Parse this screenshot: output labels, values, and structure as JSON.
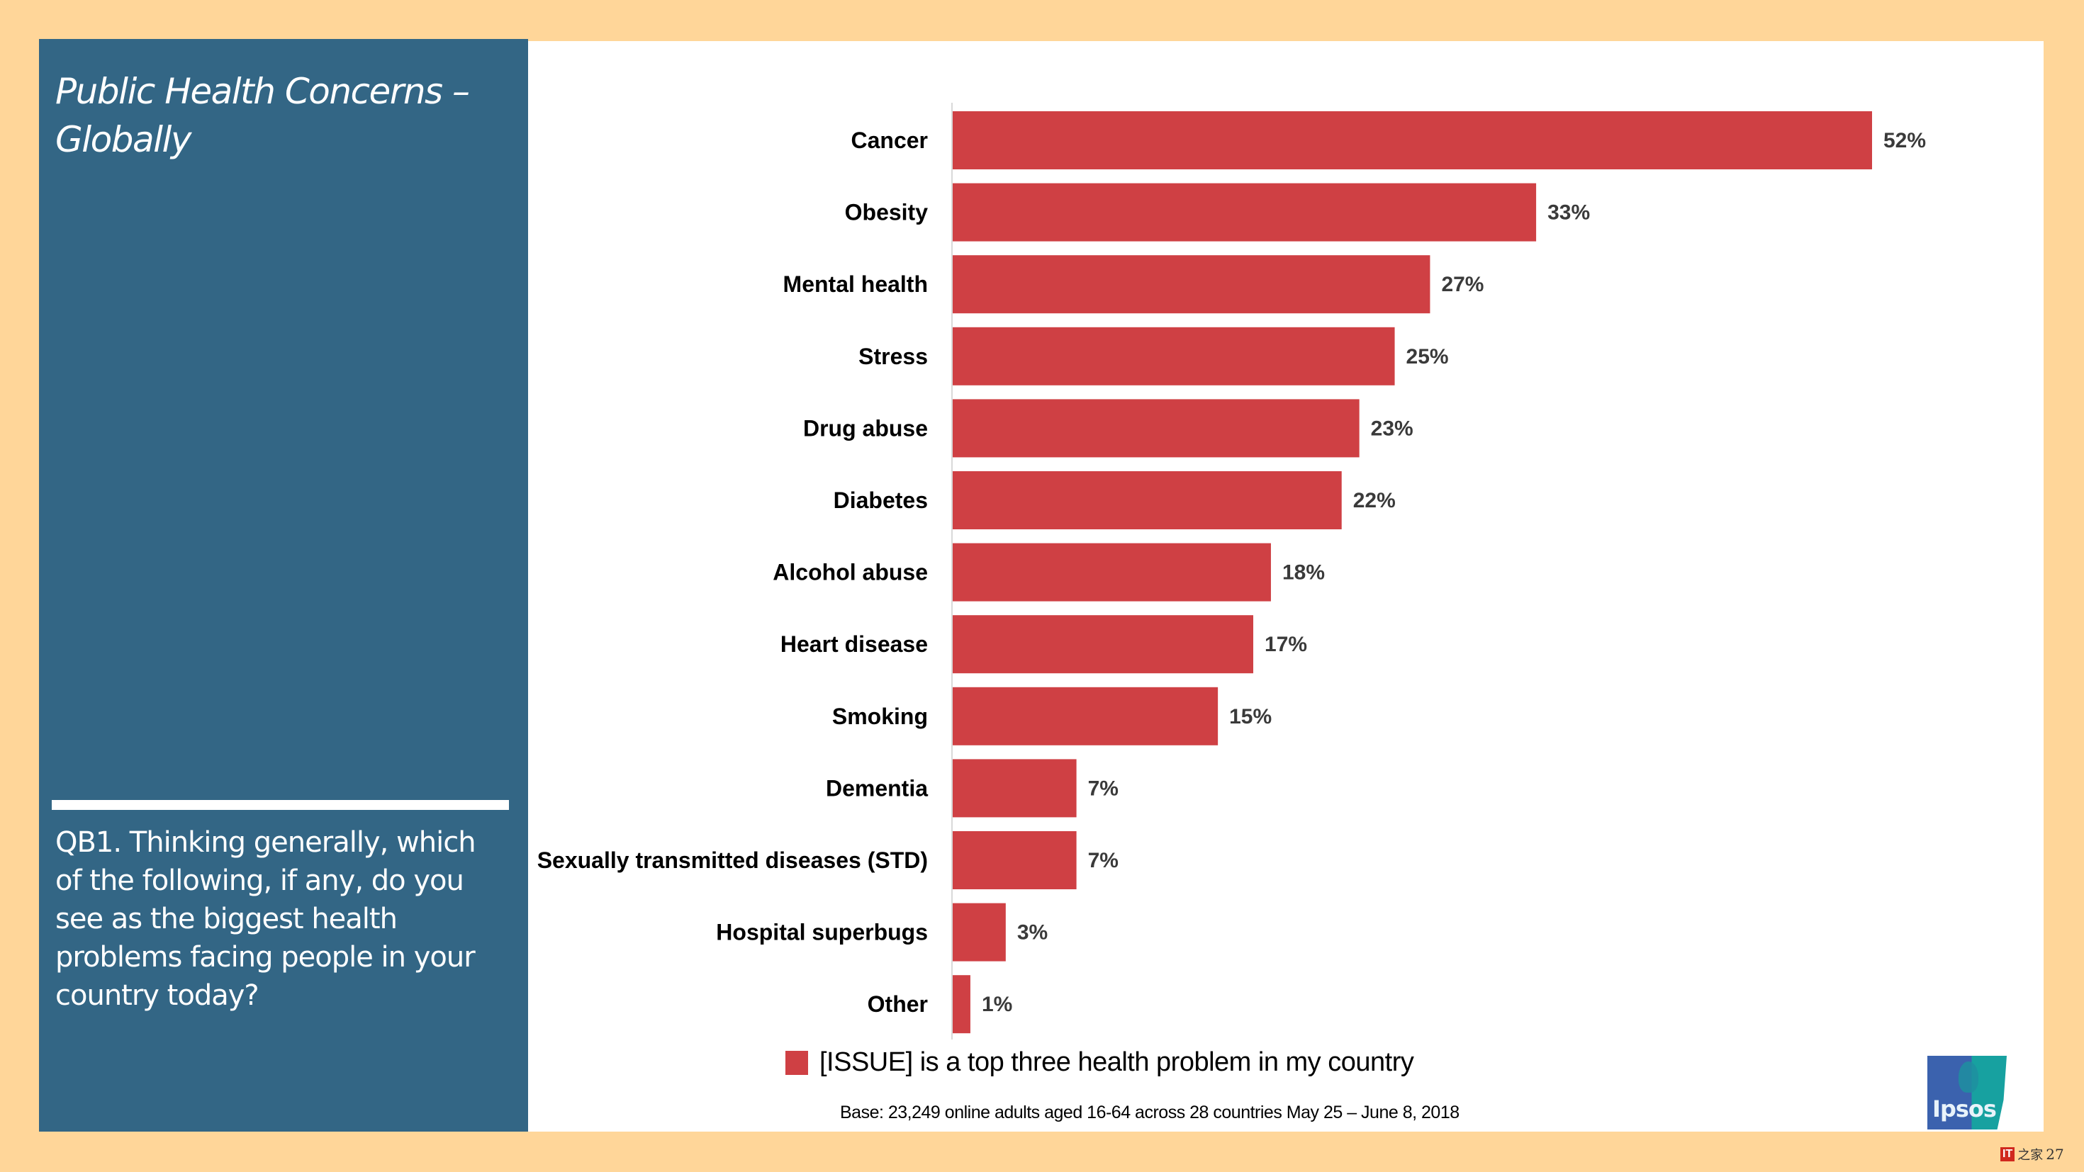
{
  "side_panel": {
    "title": "Public Health Concerns – Globally",
    "question": "QB1. Thinking generally, which of the following, if any, do you see as the biggest health problems facing people in your country today?"
  },
  "colors": {
    "bar": "#CF4044",
    "panel": "#336685",
    "frame": "#FFD699"
  },
  "chart_data": {
    "type": "bar",
    "orientation": "horizontal",
    "title": "Public Health Concerns – Globally",
    "xlabel": "",
    "ylabel": "",
    "xlim": [
      0,
      52
    ],
    "grid": false,
    "legend_position": "bottom",
    "categories": [
      "Cancer",
      "Obesity",
      "Mental health",
      "Stress",
      "Drug abuse",
      "Diabetes",
      "Alcohol abuse",
      "Heart disease",
      "Smoking",
      "Dementia",
      "Sexually transmitted diseases (STD)",
      "Hospital superbugs",
      "Other"
    ],
    "series": [
      {
        "name": "[ISSUE] is a top three health problem in my country",
        "values": [
          52,
          33,
          27,
          25,
          23,
          22,
          18,
          17,
          15,
          7,
          7,
          3,
          1
        ],
        "labels": [
          "52%",
          "33%",
          "27%",
          "25%",
          "23%",
          "22%",
          "18%",
          "17%",
          "15%",
          "7%",
          "7%",
          "3%",
          "1%"
        ]
      }
    ]
  },
  "legend": {
    "label": "[ISSUE] is a top three health problem in my country"
  },
  "footer": {
    "base_note": "Base: 23,249 online adults aged 16-64 across 28 countries  May 25 – June 8, 2018",
    "logo_text": "Ipsos",
    "page_number": "27",
    "watermark_badge": "IT",
    "watermark_text": "之家"
  }
}
